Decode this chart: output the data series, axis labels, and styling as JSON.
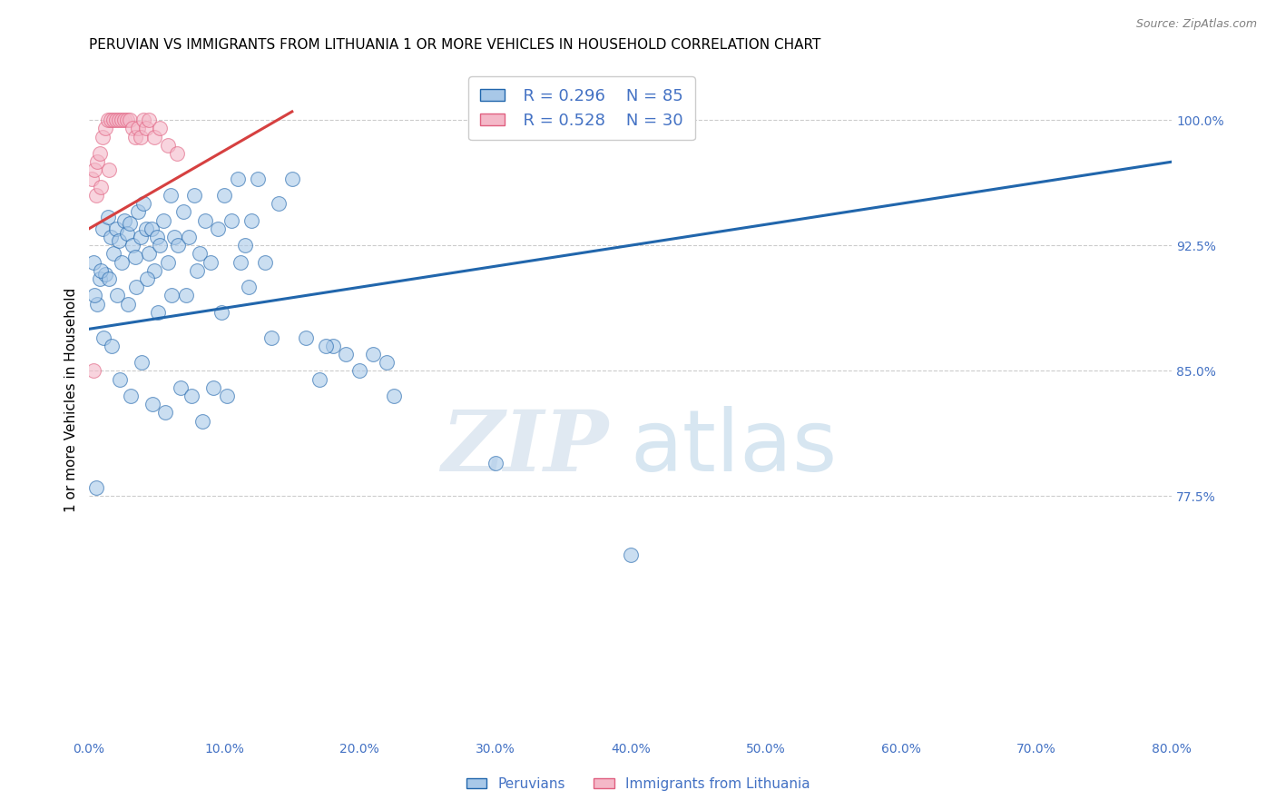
{
  "title": "PERUVIAN VS IMMIGRANTS FROM LITHUANIA 1 OR MORE VEHICLES IN HOUSEHOLD CORRELATION CHART",
  "source": "Source: ZipAtlas.com",
  "ylabel": "1 or more Vehicles in Household",
  "x_tick_labels": [
    "0.0%",
    "10.0%",
    "20.0%",
    "30.0%",
    "40.0%",
    "50.0%",
    "60.0%",
    "70.0%",
    "80.0%"
  ],
  "x_tick_vals": [
    0.0,
    10.0,
    20.0,
    30.0,
    40.0,
    50.0,
    60.0,
    70.0,
    80.0
  ],
  "y_tick_labels": [
    "100.0%",
    "92.5%",
    "85.0%",
    "77.5%"
  ],
  "y_tick_vals": [
    100.0,
    92.5,
    85.0,
    77.5
  ],
  "xlim": [
    0.0,
    80.0
  ],
  "ylim": [
    63.0,
    103.5
  ],
  "legend_r1": "R = 0.296",
  "legend_n1": "N = 85",
  "legend_r2": "R = 0.528",
  "legend_n2": "N = 30",
  "blue_color": "#a8c8e8",
  "pink_color": "#f4b8c8",
  "blue_line_color": "#2166ac",
  "pink_line_color": "#d64040",
  "blue_scatter_x": [
    0.3,
    0.5,
    0.8,
    1.0,
    1.2,
    1.4,
    1.6,
    1.8,
    2.0,
    2.2,
    2.4,
    2.6,
    2.8,
    3.0,
    3.2,
    3.4,
    3.6,
    3.8,
    4.0,
    4.2,
    4.4,
    4.6,
    4.8,
    5.0,
    5.2,
    5.5,
    5.8,
    6.0,
    6.3,
    6.6,
    7.0,
    7.4,
    7.8,
    8.2,
    8.6,
    9.0,
    9.5,
    10.0,
    10.5,
    11.0,
    11.5,
    12.0,
    12.5,
    13.0,
    14.0,
    15.0,
    16.0,
    17.0,
    18.0,
    19.0,
    20.0,
    21.0,
    22.0,
    0.6,
    1.1,
    1.7,
    2.3,
    3.1,
    3.9,
    4.7,
    5.6,
    6.8,
    7.6,
    8.4,
    9.2,
    10.2,
    11.2,
    0.4,
    0.9,
    1.5,
    2.1,
    2.9,
    3.5,
    4.3,
    5.1,
    6.1,
    7.2,
    8.0,
    9.8,
    11.8,
    13.5,
    17.5,
    22.5,
    30.0,
    40.0
  ],
  "blue_scatter_y": [
    91.5,
    78.0,
    90.5,
    93.5,
    90.8,
    94.2,
    93.0,
    92.0,
    93.5,
    92.8,
    91.5,
    94.0,
    93.2,
    93.8,
    92.5,
    91.8,
    94.5,
    93.0,
    95.0,
    93.5,
    92.0,
    93.5,
    91.0,
    93.0,
    92.5,
    94.0,
    91.5,
    95.5,
    93.0,
    92.5,
    94.5,
    93.0,
    95.5,
    92.0,
    94.0,
    91.5,
    93.5,
    95.5,
    94.0,
    96.5,
    92.5,
    94.0,
    96.5,
    91.5,
    95.0,
    96.5,
    87.0,
    84.5,
    86.5,
    86.0,
    85.0,
    86.0,
    85.5,
    89.0,
    87.0,
    86.5,
    84.5,
    83.5,
    85.5,
    83.0,
    82.5,
    84.0,
    83.5,
    82.0,
    84.0,
    83.5,
    91.5,
    89.5,
    91.0,
    90.5,
    89.5,
    89.0,
    90.0,
    90.5,
    88.5,
    89.5,
    89.5,
    91.0,
    88.5,
    90.0,
    87.0,
    86.5,
    83.5,
    79.5,
    74.0
  ],
  "pink_scatter_x": [
    0.2,
    0.4,
    0.6,
    0.8,
    1.0,
    1.2,
    1.4,
    1.6,
    1.8,
    2.0,
    2.2,
    2.4,
    2.6,
    2.8,
    3.0,
    3.2,
    3.4,
    3.6,
    3.8,
    4.0,
    4.2,
    4.4,
    4.8,
    5.2,
    5.8,
    6.5,
    0.5,
    0.9,
    1.5,
    0.3
  ],
  "pink_scatter_y": [
    96.5,
    97.0,
    97.5,
    98.0,
    99.0,
    99.5,
    100.0,
    100.0,
    100.0,
    100.0,
    100.0,
    100.0,
    100.0,
    100.0,
    100.0,
    99.5,
    99.0,
    99.5,
    99.0,
    100.0,
    99.5,
    100.0,
    99.0,
    99.5,
    98.5,
    98.0,
    95.5,
    96.0,
    97.0,
    85.0
  ],
  "blue_trendline_x": [
    0.0,
    80.0
  ],
  "blue_trendline_y": [
    87.5,
    97.5
  ],
  "pink_trendline_x": [
    0.0,
    15.0
  ],
  "pink_trendline_y": [
    93.5,
    100.5
  ],
  "watermark_zip": "ZIP",
  "watermark_atlas": "atlas",
  "background_color": "#ffffff",
  "grid_color": "#cccccc",
  "title_fontsize": 11,
  "axis_label_fontsize": 11,
  "tick_fontsize": 10,
  "legend_fontsize": 13
}
